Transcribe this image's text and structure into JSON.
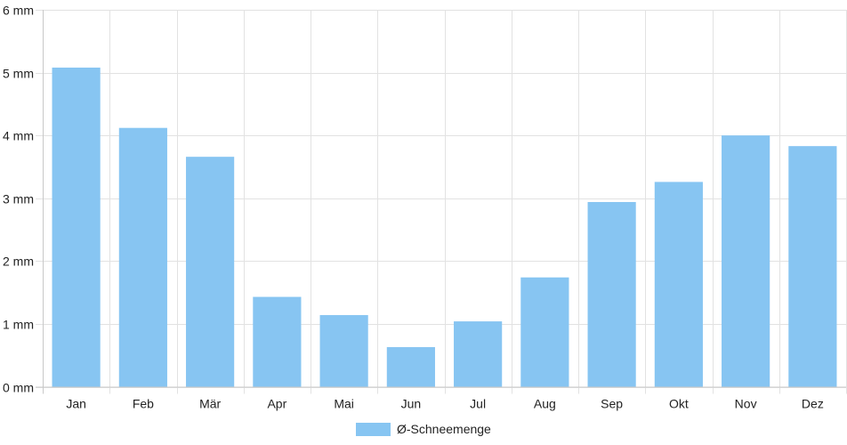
{
  "chart_data": {
    "type": "bar",
    "categories": [
      "Jan",
      "Feb",
      "Mär",
      "Apr",
      "Mai",
      "Jun",
      "Jul",
      "Aug",
      "Sep",
      "Okt",
      "Nov",
      "Dez"
    ],
    "series": [
      {
        "name": "Ø-Schneemenge",
        "values": [
          5.08,
          4.12,
          3.66,
          1.43,
          1.14,
          0.63,
          1.04,
          1.74,
          2.94,
          3.26,
          4.0,
          3.83
        ],
        "color": "#87c5f2"
      }
    ],
    "y_unit": "mm",
    "ylim": [
      0,
      6
    ],
    "y_ticks": [
      0,
      1,
      2,
      3,
      4,
      5,
      6
    ],
    "grid": true,
    "legend_position": "bottom-center"
  }
}
